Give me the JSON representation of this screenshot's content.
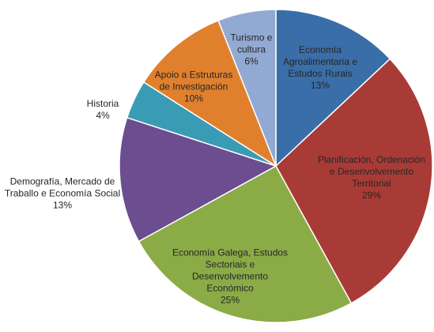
{
  "chart_data": {
    "type": "pie",
    "categories": [
      "Economía Agroalimentaria e Estudos Rurais",
      "Planificación, Ordenación e Desenvolvemento Territorial",
      "Economía Galega, Estudos Sectoriais e Desenvolvemento Económico",
      "Demografía, Mercado de Traballo e Economía Social",
      "Historia",
      "Apoio a Estruturas de Investigación",
      "Turismo e cultura"
    ],
    "values": [
      13,
      29,
      25,
      13,
      4,
      10,
      6
    ],
    "value_labels": [
      "13%",
      "29%",
      "25%",
      "13%",
      "4%",
      "10%",
      "6%"
    ],
    "colors": [
      "#3a6ea8",
      "#a93b37",
      "#8bab47",
      "#6c4d8f",
      "#3a9bb4",
      "#e0802d",
      "#92a9d3"
    ]
  }
}
